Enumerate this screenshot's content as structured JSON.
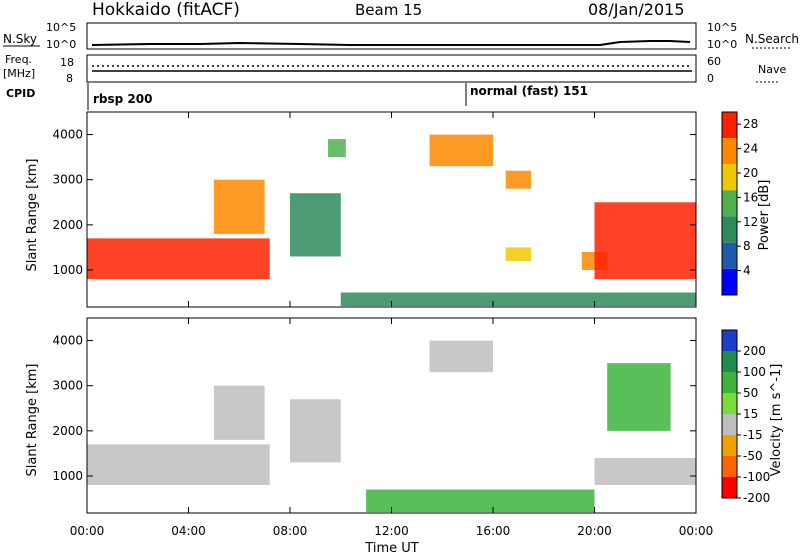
{
  "header": {
    "station": "Hokkaido (fitACF)",
    "beam": "Beam 15",
    "date": "08/Jan/2015"
  },
  "top_panels": {
    "nsky_label": "N.Sky",
    "nsearch_label": "N.Search",
    "nsky_ticks": [
      "10^5",
      "10^0"
    ],
    "freq_label": "Freq.",
    "freq_unit": "[MHz]",
    "freq_ticks": [
      "18",
      "8"
    ],
    "nave_ticks": [
      "60",
      "0"
    ],
    "nave_label": "Nave",
    "cpid_label": "CPID",
    "cpid_segments": [
      {
        "label": "rbsp 200",
        "start_hour": 0
      },
      {
        "label": "normal (fast) 151",
        "start_hour": 15
      }
    ]
  },
  "chart_data": [
    {
      "type": "heatmap",
      "panel": "power",
      "ylabel": "Slant Range [km]",
      "xlabel": "",
      "x_ticks": [
        "00:00",
        "04:00",
        "08:00",
        "12:00",
        "16:00",
        "20:00",
        "00:00"
      ],
      "x_range_hours": [
        0,
        24
      ],
      "y_ticks": [
        1000,
        2000,
        3000,
        4000
      ],
      "ylim": [
        180,
        4500
      ],
      "colorbar": {
        "label": "Power [dB]",
        "ticks": [
          4,
          8,
          12,
          16,
          20,
          24,
          28
        ],
        "range": [
          0,
          30
        ],
        "colors": [
          "#0000ff",
          "#1e5aaa",
          "#2e8a5a",
          "#4fb04f",
          "#f0c800",
          "#ff8800",
          "#ff2000"
        ]
      },
      "regions": [
        {
          "t0": 0.0,
          "t1": 7.2,
          "r0": 800,
          "r1": 1700,
          "level": 26
        },
        {
          "t0": 5.0,
          "t1": 7.0,
          "r0": 1800,
          "r1": 3000,
          "level": 24
        },
        {
          "t0": 8.0,
          "t1": 10.0,
          "r0": 1300,
          "r1": 2700,
          "level": 10
        },
        {
          "t0": 9.5,
          "t1": 10.2,
          "r0": 3500,
          "r1": 3900,
          "level": 16
        },
        {
          "t0": 13.5,
          "t1": 16.0,
          "r0": 3300,
          "r1": 4000,
          "level": 24
        },
        {
          "t0": 16.5,
          "t1": 17.5,
          "r0": 2800,
          "r1": 3200,
          "level": 22
        },
        {
          "t0": 16.5,
          "t1": 17.5,
          "r0": 1200,
          "r1": 1500,
          "level": 18
        },
        {
          "t0": 19.5,
          "t1": 20.5,
          "r0": 1000,
          "r1": 1400,
          "level": 22
        },
        {
          "t0": 20.0,
          "t1": 24.0,
          "r0": 800,
          "r1": 2500,
          "level": 26
        },
        {
          "t0": 10.0,
          "t1": 24.0,
          "r0": 200,
          "r1": 500,
          "level": 12
        }
      ]
    },
    {
      "type": "heatmap",
      "panel": "velocity",
      "ylabel": "Slant Range [km]",
      "xlabel": "Time UT",
      "x_ticks": [
        "00:00",
        "04:00",
        "08:00",
        "12:00",
        "16:00",
        "20:00",
        "00:00"
      ],
      "x_range_hours": [
        0,
        24
      ],
      "y_ticks": [
        1000,
        2000,
        3000,
        4000
      ],
      "ylim": [
        180,
        4500
      ],
      "colorbar": {
        "label": "Velocity [m s^-1]",
        "ticks": [
          200,
          100,
          50,
          15,
          -15,
          -50,
          -100,
          -200
        ],
        "colors": [
          "#1e3cc8",
          "#1e8c4a",
          "#3cb43c",
          "#78dc3c",
          "#bebebe",
          "#f0a000",
          "#ff6400",
          "#ff0000"
        ],
        "ground_scatter_color": "#bebebe"
      },
      "regions": [
        {
          "t0": 0.0,
          "t1": 7.2,
          "r0": 800,
          "r1": 1700,
          "level": "gs"
        },
        {
          "t0": 5.0,
          "t1": 7.0,
          "r0": 1800,
          "r1": 3000,
          "level": "gs"
        },
        {
          "t0": 8.0,
          "t1": 10.0,
          "r0": 1300,
          "r1": 2700,
          "level": "gs"
        },
        {
          "t0": 13.5,
          "t1": 16.0,
          "r0": 3300,
          "r1": 4000,
          "level": "gs"
        },
        {
          "t0": 20.0,
          "t1": 24.0,
          "r0": 800,
          "r1": 1400,
          "level": "gs"
        },
        {
          "t0": 20.5,
          "t1": 23.0,
          "r0": 2000,
          "r1": 3500,
          "level": 50
        },
        {
          "t0": 11.0,
          "t1": 20.0,
          "r0": 200,
          "r1": 700,
          "level": 50
        }
      ]
    }
  ]
}
